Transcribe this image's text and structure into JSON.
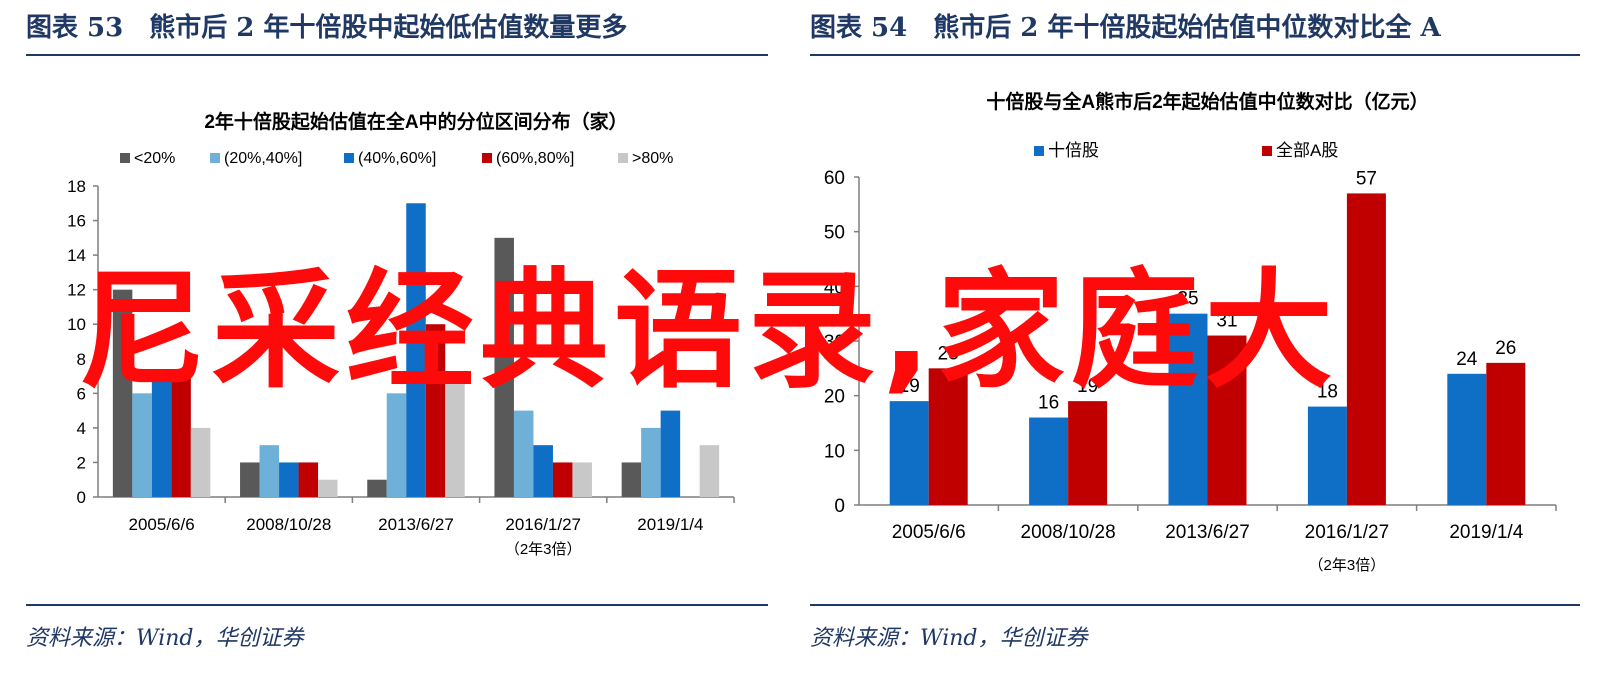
{
  "figure_left": {
    "heading": "图表 53　熊市后 2 年十倍股中起始低估值数量更多",
    "source": "资料来源：Wind，华创证券"
  },
  "figure_right": {
    "heading": "图表 54　熊市后 2 年十倍股起始估值中位数对比全 A",
    "source": "资料来源：Wind，华创证券"
  },
  "watermark": "尼采经典语录,家庭大",
  "chart_data": [
    {
      "type": "bar",
      "title": "2年十倍股起始估值在全A中的分位区间分布（家）",
      "categories": [
        "2005/6/6",
        "2008/10/28",
        "2013/6/27",
        "2016/1/27",
        "2019/1/4"
      ],
      "category_sublabels": [
        "",
        "",
        "",
        "（2年3倍）",
        ""
      ],
      "series": [
        {
          "name": "<20%",
          "color": "#595959",
          "values": [
            12,
            2,
            1,
            15,
            2
          ]
        },
        {
          "name": "(20%,40%]",
          "color": "#6fb0d8",
          "values": [
            6,
            3,
            6,
            5,
            4
          ]
        },
        {
          "name": "(40%,60%]",
          "color": "#0f6fc6",
          "values": [
            7,
            2,
            17,
            3,
            5
          ]
        },
        {
          "name": "(60%,80%]",
          "color": "#c00000",
          "values": [
            7,
            2,
            10,
            2,
            0
          ]
        },
        {
          "name": ">80%",
          "color": "#c8c8c8",
          "values": [
            4,
            1,
            7,
            2,
            3
          ]
        }
      ],
      "ylim": [
        0,
        18
      ],
      "yticks": [
        0,
        2,
        4,
        6,
        8,
        10,
        12,
        14,
        16,
        18
      ],
      "legend": "top"
    },
    {
      "type": "bar",
      "title": "十倍股与全A熊市后2年起始估值中位数对比（亿元）",
      "categories": [
        "2005/6/6",
        "2008/10/28",
        "2013/6/27",
        "2016/1/27",
        "2019/1/4"
      ],
      "category_sublabels": [
        "",
        "",
        "",
        "（2年3倍）",
        ""
      ],
      "series": [
        {
          "name": "十倍股",
          "color": "#0f6fc6",
          "values": [
            19,
            16,
            35,
            18,
            24
          ]
        },
        {
          "name": "全部A股",
          "color": "#c00000",
          "values": [
            25,
            19,
            31,
            57,
            26
          ]
        }
      ],
      "ylim": [
        0,
        60
      ],
      "yticks": [
        0,
        10,
        20,
        30,
        40,
        50,
        60
      ],
      "legend": "top",
      "data_labels": true
    }
  ]
}
